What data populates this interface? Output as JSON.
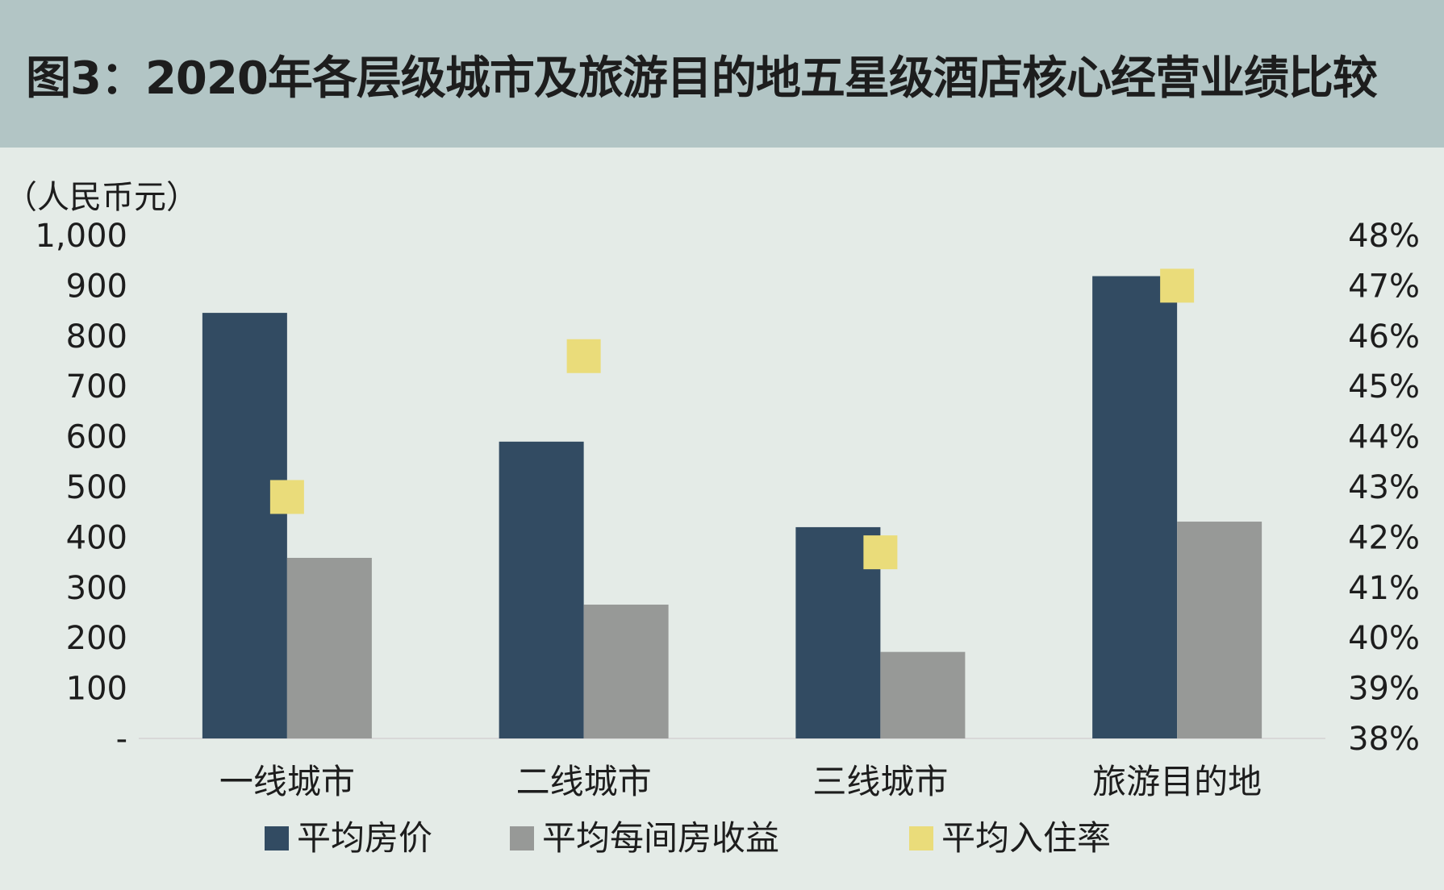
{
  "header": {
    "title": "图3：2020年各层级城市及旅游目的地五星级酒店核心经营业绩比较"
  },
  "colors": {
    "header_bg": "#b2c5c5",
    "plot_bg": "#e4ebe7",
    "series_adr": "#324b62",
    "series_revpar": "#979997",
    "series_occupancy": "#eadc7a"
  },
  "chart_data": {
    "type": "bar",
    "title": "图3：2020年各层级城市及旅游目的地五星级酒店核心经营业绩比较",
    "ylabel": "（人民币元）",
    "categories": [
      "一线城市",
      "二线城市",
      "三线城市",
      "旅游目的地"
    ],
    "ylim": [
      0,
      1000
    ],
    "yticks": [
      0,
      100,
      200,
      300,
      400,
      500,
      600,
      700,
      800,
      900,
      1000
    ],
    "ytick_labels": [
      "-",
      "100",
      "200",
      "300",
      "400",
      "500",
      "600",
      "700",
      "800",
      "900",
      "1,000"
    ],
    "y2lim": [
      38,
      48
    ],
    "y2ticks": [
      38,
      39,
      40,
      41,
      42,
      43,
      44,
      45,
      46,
      47,
      48
    ],
    "y2tick_labels": [
      "38%",
      "39%",
      "40%",
      "41%",
      "42%",
      "43%",
      "44%",
      "45%",
      "46%",
      "47%",
      "48%"
    ],
    "series": [
      {
        "name": "平均房价",
        "type": "bar",
        "axis": "left",
        "values": [
          846,
          590,
          420,
          919
        ]
      },
      {
        "name": "平均每间房收益",
        "type": "bar",
        "axis": "left",
        "values": [
          359,
          266,
          172,
          431
        ]
      },
      {
        "name": "平均入住率",
        "type": "scatter",
        "axis": "right",
        "marker": "square",
        "values": [
          42.8,
          45.6,
          41.7,
          47.0
        ]
      }
    ],
    "legend_position": "bottom",
    "grid": false
  }
}
